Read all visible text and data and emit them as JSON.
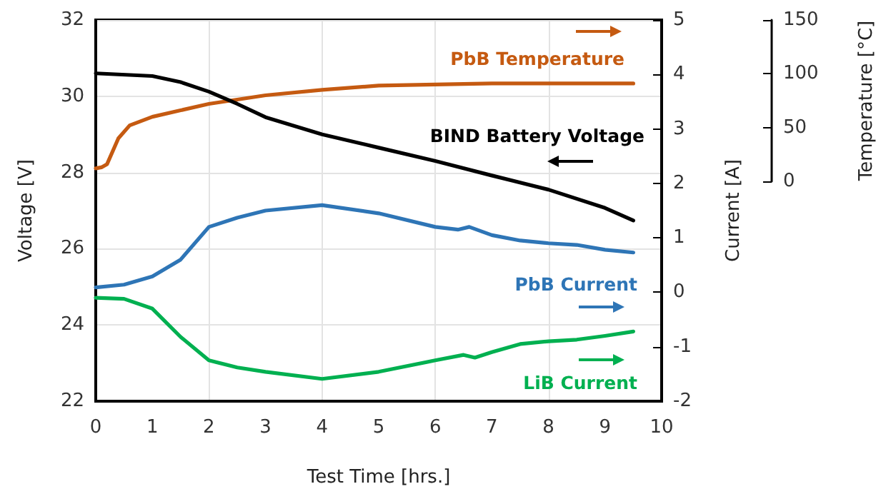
{
  "chart_data": {
    "type": "line",
    "xlabel": "Test Time [hrs.]",
    "ylabel": "Voltage [V]",
    "y2label": "Current [A]",
    "y3label": "Temperature [°C]",
    "xlim": [
      0,
      10
    ],
    "xticks": [
      0,
      1,
      2,
      3,
      4,
      5,
      6,
      7,
      8,
      9,
      10
    ],
    "ylim": [
      22,
      32
    ],
    "yticks": [
      22,
      24,
      26,
      28,
      30,
      32
    ],
    "y2lim": [
      -2,
      5
    ],
    "y2ticks": [
      -2,
      -1,
      0,
      1,
      2,
      3,
      4,
      5
    ],
    "y3lim": [
      0,
      150
    ],
    "y3ticks": [
      0,
      50,
      100,
      150
    ],
    "grid": true,
    "marker": "none",
    "legend": "right",
    "series": [
      {
        "name": "PbB Temperature",
        "color": "#c55a11",
        "axis": "y3",
        "x": [
          0,
          0.1,
          0.2,
          0.4,
          0.6,
          1,
          1.5,
          2,
          3,
          4,
          5,
          6,
          7,
          8,
          9,
          9.5
        ],
        "values": [
          12,
          13,
          16,
          40,
          52,
          60,
          66,
          72,
          80,
          85,
          89,
          90,
          91,
          91,
          91,
          91
        ]
      },
      {
        "name": "BIND Battery Voltage",
        "color": "#000000",
        "axis": "y",
        "x": [
          0,
          1,
          1.5,
          2,
          2.5,
          3,
          4,
          5,
          6,
          7,
          8,
          9,
          9.5
        ],
        "values": [
          30.6,
          30.53,
          30.37,
          30.12,
          29.8,
          29.45,
          29.0,
          28.65,
          28.3,
          27.92,
          27.55,
          27.07,
          26.74
        ]
      },
      {
        "name": "PbB Current",
        "color": "#2e75b6",
        "axis": "y2",
        "x": [
          0,
          0.5,
          1,
          1.5,
          2,
          2.5,
          3,
          4,
          5,
          6,
          6.4,
          6.6,
          7,
          7.5,
          8,
          8.5,
          9,
          9.5
        ],
        "values": [
          0.09,
          0.14,
          0.29,
          0.6,
          1.2,
          1.37,
          1.5,
          1.6,
          1.45,
          1.2,
          1.15,
          1.2,
          1.05,
          0.95,
          0.9,
          0.87,
          0.78,
          0.73
        ]
      },
      {
        "name": "LiB Current",
        "color": "#00b050",
        "axis": "y2",
        "x": [
          0,
          0.5,
          1,
          1.5,
          2,
          2.5,
          3,
          4,
          5,
          6,
          6.5,
          6.7,
          7,
          7.5,
          8,
          8.5,
          9,
          9.5
        ],
        "values": [
          -0.1,
          -0.12,
          -0.3,
          -0.82,
          -1.25,
          -1.38,
          -1.46,
          -1.59,
          -1.46,
          -1.25,
          -1.15,
          -1.2,
          -1.1,
          -0.95,
          -0.9,
          -0.87,
          -0.8,
          -0.72
        ]
      }
    ]
  }
}
